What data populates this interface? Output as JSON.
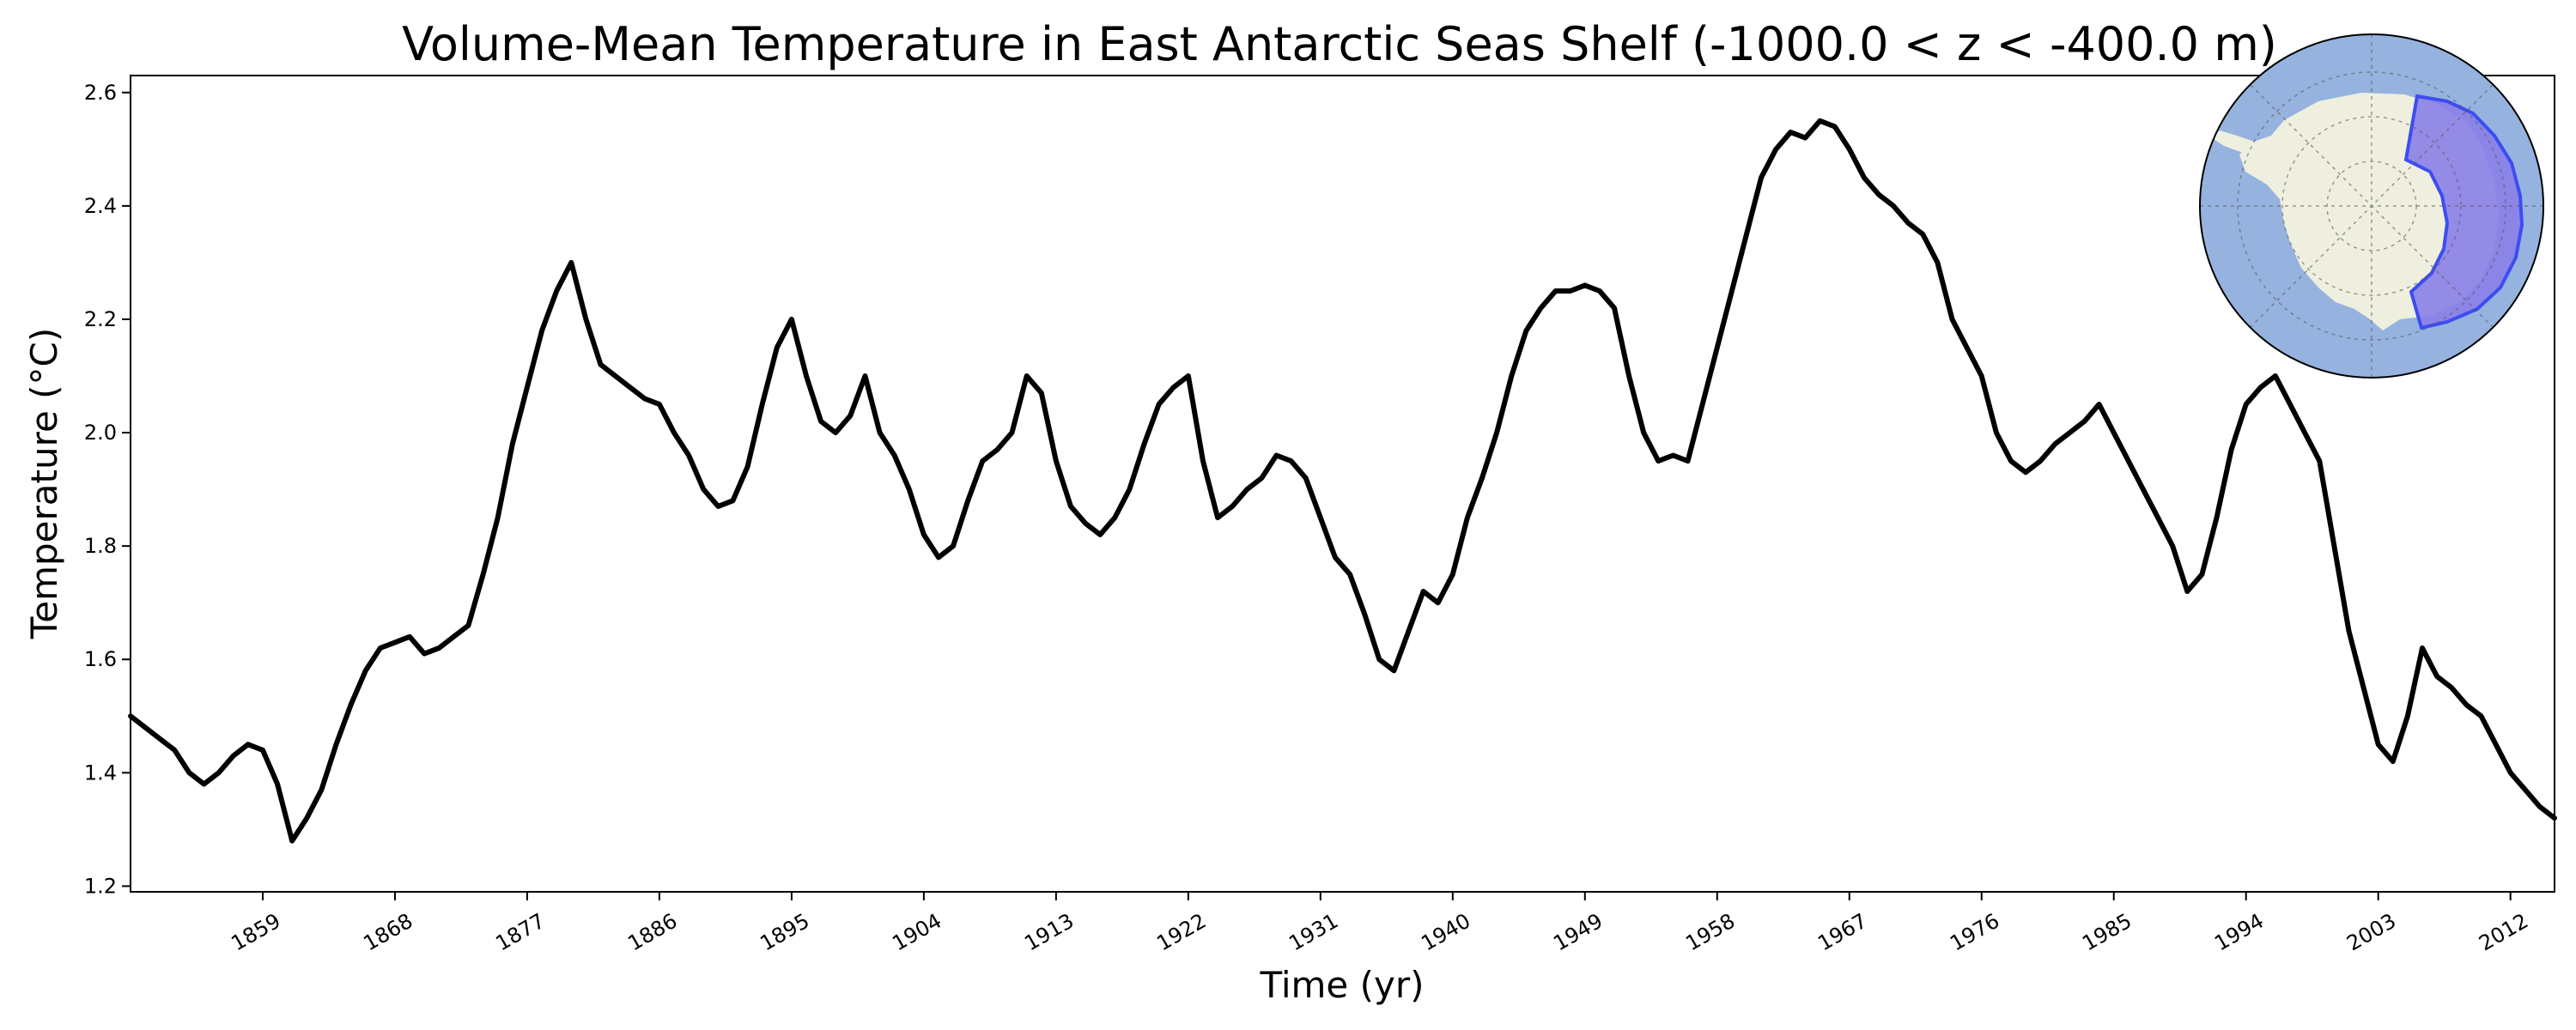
{
  "chart_data": {
    "type": "line",
    "title": "Volume-Mean Temperature in East Antarctic Seas Shelf (-1000.0 < z < -400.0 m)",
    "xlabel": "Time (yr)",
    "ylabel": "Temperature ($^\\circ$C)",
    "ylabel_display": "Temperature (°C)",
    "xlim": [
      1850,
      2015
    ],
    "ylim": [
      1.19,
      2.63
    ],
    "x_ticks": [
      1859,
      1868,
      1877,
      1886,
      1895,
      1904,
      1913,
      1922,
      1931,
      1940,
      1949,
      1958,
      1967,
      1976,
      1985,
      1994,
      2003,
      2012
    ],
    "y_ticks": [
      1.2,
      1.4,
      1.6,
      1.8,
      2.0,
      2.2,
      2.4,
      2.6
    ],
    "y_tick_labels": [
      "1.2",
      "1.4",
      "1.6",
      "1.8",
      "2.0",
      "2.2",
      "2.4",
      "2.6"
    ],
    "grid": false,
    "series": [
      {
        "name": "volume-mean temperature",
        "color": "#000000",
        "x": [
          1850,
          1851,
          1852,
          1853,
          1854,
          1855,
          1856,
          1857,
          1858,
          1859,
          1860,
          1861,
          1862,
          1863,
          1864,
          1865,
          1866,
          1867,
          1868,
          1869,
          1870,
          1871,
          1872,
          1873,
          1874,
          1875,
          1876,
          1877,
          1878,
          1879,
          1880,
          1881,
          1882,
          1883,
          1884,
          1885,
          1886,
          1887,
          1888,
          1889,
          1890,
          1891,
          1892,
          1893,
          1894,
          1895,
          1896,
          1897,
          1898,
          1899,
          1900,
          1901,
          1902,
          1903,
          1904,
          1905,
          1906,
          1907,
          1908,
          1909,
          1910,
          1911,
          1912,
          1913,
          1914,
          1915,
          1916,
          1917,
          1918,
          1919,
          1920,
          1921,
          1922,
          1923,
          1924,
          1925,
          1926,
          1927,
          1928,
          1929,
          1930,
          1931,
          1932,
          1933,
          1934,
          1935,
          1936,
          1937,
          1938,
          1939,
          1940,
          1941,
          1942,
          1943,
          1944,
          1945,
          1946,
          1947,
          1948,
          1949,
          1950,
          1951,
          1952,
          1953,
          1954,
          1955,
          1956,
          1957,
          1958,
          1959,
          1960,
          1961,
          1962,
          1963,
          1964,
          1965,
          1966,
          1967,
          1968,
          1969,
          1970,
          1971,
          1972,
          1973,
          1974,
          1975,
          1976,
          1977,
          1978,
          1979,
          1980,
          1981,
          1982,
          1983,
          1984,
          1985,
          1986,
          1987,
          1988,
          1989,
          1990,
          1991,
          1992,
          1993,
          1994,
          1995,
          1996,
          1997,
          1998,
          1999,
          2000,
          2001,
          2002,
          2003,
          2004,
          2005,
          2006,
          2007,
          2008,
          2009,
          2010,
          2011,
          2012,
          2013,
          2014,
          2015
        ],
        "values": [
          1.5,
          1.48,
          1.46,
          1.44,
          1.4,
          1.38,
          1.4,
          1.43,
          1.45,
          1.44,
          1.38,
          1.28,
          1.32,
          1.37,
          1.45,
          1.52,
          1.58,
          1.62,
          1.63,
          1.64,
          1.61,
          1.62,
          1.64,
          1.66,
          1.75,
          1.85,
          1.98,
          2.08,
          2.18,
          2.25,
          2.3,
          2.2,
          2.12,
          2.1,
          2.08,
          2.06,
          2.05,
          2.0,
          1.96,
          1.9,
          1.87,
          1.88,
          1.94,
          2.05,
          2.15,
          2.2,
          2.1,
          2.02,
          2.0,
          2.03,
          2.1,
          2.0,
          1.96,
          1.9,
          1.82,
          1.78,
          1.8,
          1.88,
          1.95,
          1.97,
          2.0,
          2.1,
          2.07,
          1.95,
          1.87,
          1.84,
          1.82,
          1.85,
          1.9,
          1.98,
          2.05,
          2.08,
          2.1,
          1.95,
          1.85,
          1.87,
          1.9,
          1.92,
          1.96,
          1.95,
          1.92,
          1.85,
          1.78,
          1.75,
          1.68,
          1.6,
          1.58,
          1.65,
          1.72,
          1.7,
          1.75,
          1.85,
          1.92,
          2.0,
          2.1,
          2.18,
          2.22,
          2.25,
          2.25,
          2.26,
          2.25,
          2.22,
          2.1,
          2.0,
          1.95,
          1.96,
          1.95,
          2.05,
          2.15,
          2.25,
          2.35,
          2.45,
          2.5,
          2.53,
          2.52,
          2.55,
          2.54,
          2.5,
          2.45,
          2.42,
          2.4,
          2.37,
          2.35,
          2.3,
          2.2,
          2.15,
          2.1,
          2.0,
          1.95,
          1.93,
          1.95,
          1.98,
          2.0,
          2.02,
          2.05,
          2.0,
          1.95,
          1.9,
          1.85,
          1.8,
          1.72,
          1.75,
          1.85,
          1.97,
          2.05,
          2.08,
          2.1,
          2.05,
          2.0,
          1.95,
          1.8,
          1.65,
          1.55,
          1.45,
          1.42,
          1.5,
          1.62,
          1.57,
          1.55,
          1.52,
          1.5,
          1.45,
          1.4,
          1.37,
          1.34,
          1.32
        ]
      }
    ],
    "inset": {
      "type": "map",
      "projection": "south-polar-stereographic",
      "region": "East Antarctic Seas Shelf",
      "ocean_color": "#96b3df",
      "land_color": "#efefdf",
      "region_color": "#8a7fe8",
      "region_outline_color": "#3d4df0"
    }
  }
}
